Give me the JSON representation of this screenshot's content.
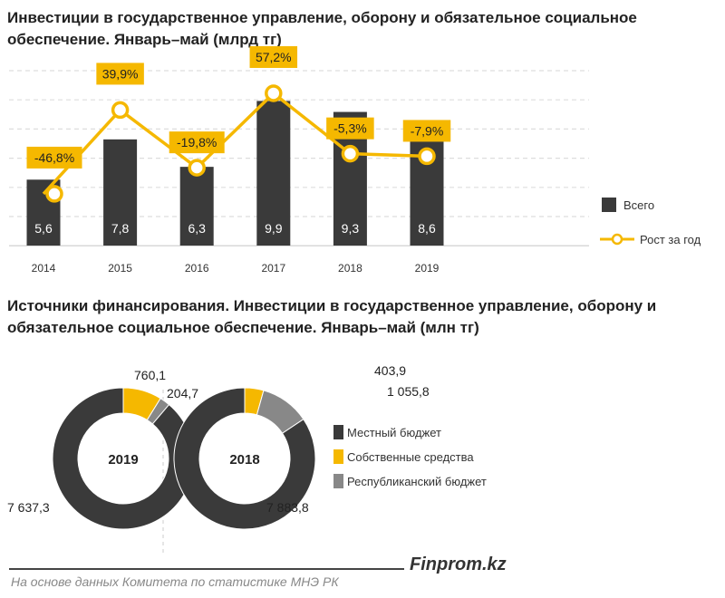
{
  "chart_data": [
    {
      "type": "bar+line",
      "title": "Инвестиции в государственное управление, оборону и обязательное социальное обеспечение. Январь–май (млрд тг)",
      "categories": [
        "2014",
        "2015",
        "2016",
        "2017",
        "2018",
        "2019"
      ],
      "series": [
        {
          "name": "Всего",
          "type": "bar",
          "values": [
            5.6,
            7.8,
            6.3,
            9.9,
            9.3,
            8.6
          ],
          "labels": [
            "5,6",
            "7,8",
            "6,3",
            "9,9",
            "9,3",
            "8,6"
          ],
          "color": "#3a3a3a"
        },
        {
          "name": "Рост за год",
          "type": "line",
          "values": [
            -46.8,
            39.9,
            -19.8,
            57.2,
            -5.3,
            -7.9
          ],
          "labels": [
            "-46,8%",
            "39,9%",
            "-19,8%",
            "57,2%",
            "-5,3%",
            "-7,9%"
          ],
          "color": "#f5b800"
        }
      ],
      "ylim": [
        2,
        11.5
      ],
      "grid": true,
      "legend": "right"
    },
    {
      "type": "pie",
      "title": "Источники финансирования.  Инвестиции в государственное управление, оборону и обязательное социальное обеспечение. Январь–май (млн тг)",
      "categories": [
        "Местный бюджет",
        "Собственные средства",
        "Республиканский бюджет"
      ],
      "colors": [
        "#3a3a3a",
        "#f5b800",
        "#888888"
      ],
      "series": [
        {
          "name": "2019",
          "values": [
            7637.3,
            760.1,
            204.7
          ],
          "labels": [
            "7 637,3",
            "760,1",
            "204,7"
          ]
        },
        {
          "name": "2018",
          "values": [
            7883.8,
            403.9,
            1055.8
          ],
          "labels": [
            "7 883,8",
            "403,9",
            "1 055,8"
          ]
        }
      ],
      "legend": "right"
    }
  ],
  "footer": {
    "brand": "Finprom.kz",
    "source": "На основе данных  Комитета по статистике МНЭ РК"
  }
}
